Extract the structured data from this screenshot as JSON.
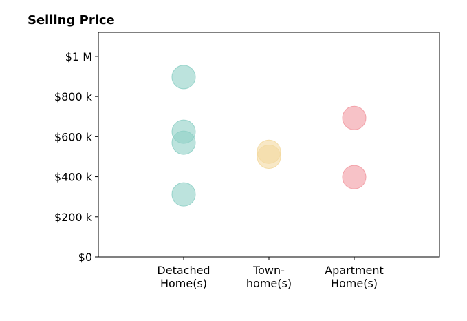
{
  "chart_data": {
    "type": "scatter",
    "title": "Selling Price",
    "xlabel": "",
    "ylabel": "",
    "categories": [
      [
        "Detached",
        "Home(s)"
      ],
      [
        "Town-",
        "home(s)"
      ],
      [
        "Apartment",
        "Home(s)"
      ]
    ],
    "ylim": [
      0,
      1120000
    ],
    "y_ticks": [
      {
        "value": 0,
        "label": "$0"
      },
      {
        "value": 200000,
        "label": "$200 k"
      },
      {
        "value": 400000,
        "label": "$400 k"
      },
      {
        "value": 600000,
        "label": "$600 k"
      },
      {
        "value": 800000,
        "label": "$800 k"
      },
      {
        "value": 1000000,
        "label": "$1 M"
      }
    ],
    "grid": false,
    "points": [
      {
        "category": 0,
        "y": 897000,
        "color": "#8fd0c7"
      },
      {
        "category": 0,
        "y": 625000,
        "color": "#8fd0c7"
      },
      {
        "category": 0,
        "y": 570000,
        "color": "#8fd0c7"
      },
      {
        "category": 0,
        "y": 312000,
        "color": "#8fd0c7"
      },
      {
        "category": 1,
        "y": 525000,
        "color": "#f3d9a0"
      },
      {
        "category": 1,
        "y": 500000,
        "color": "#f3d9a0"
      },
      {
        "category": 2,
        "y": 693000,
        "color": "#f29aa2"
      },
      {
        "category": 2,
        "y": 398000,
        "color": "#f29aa2"
      }
    ]
  }
}
